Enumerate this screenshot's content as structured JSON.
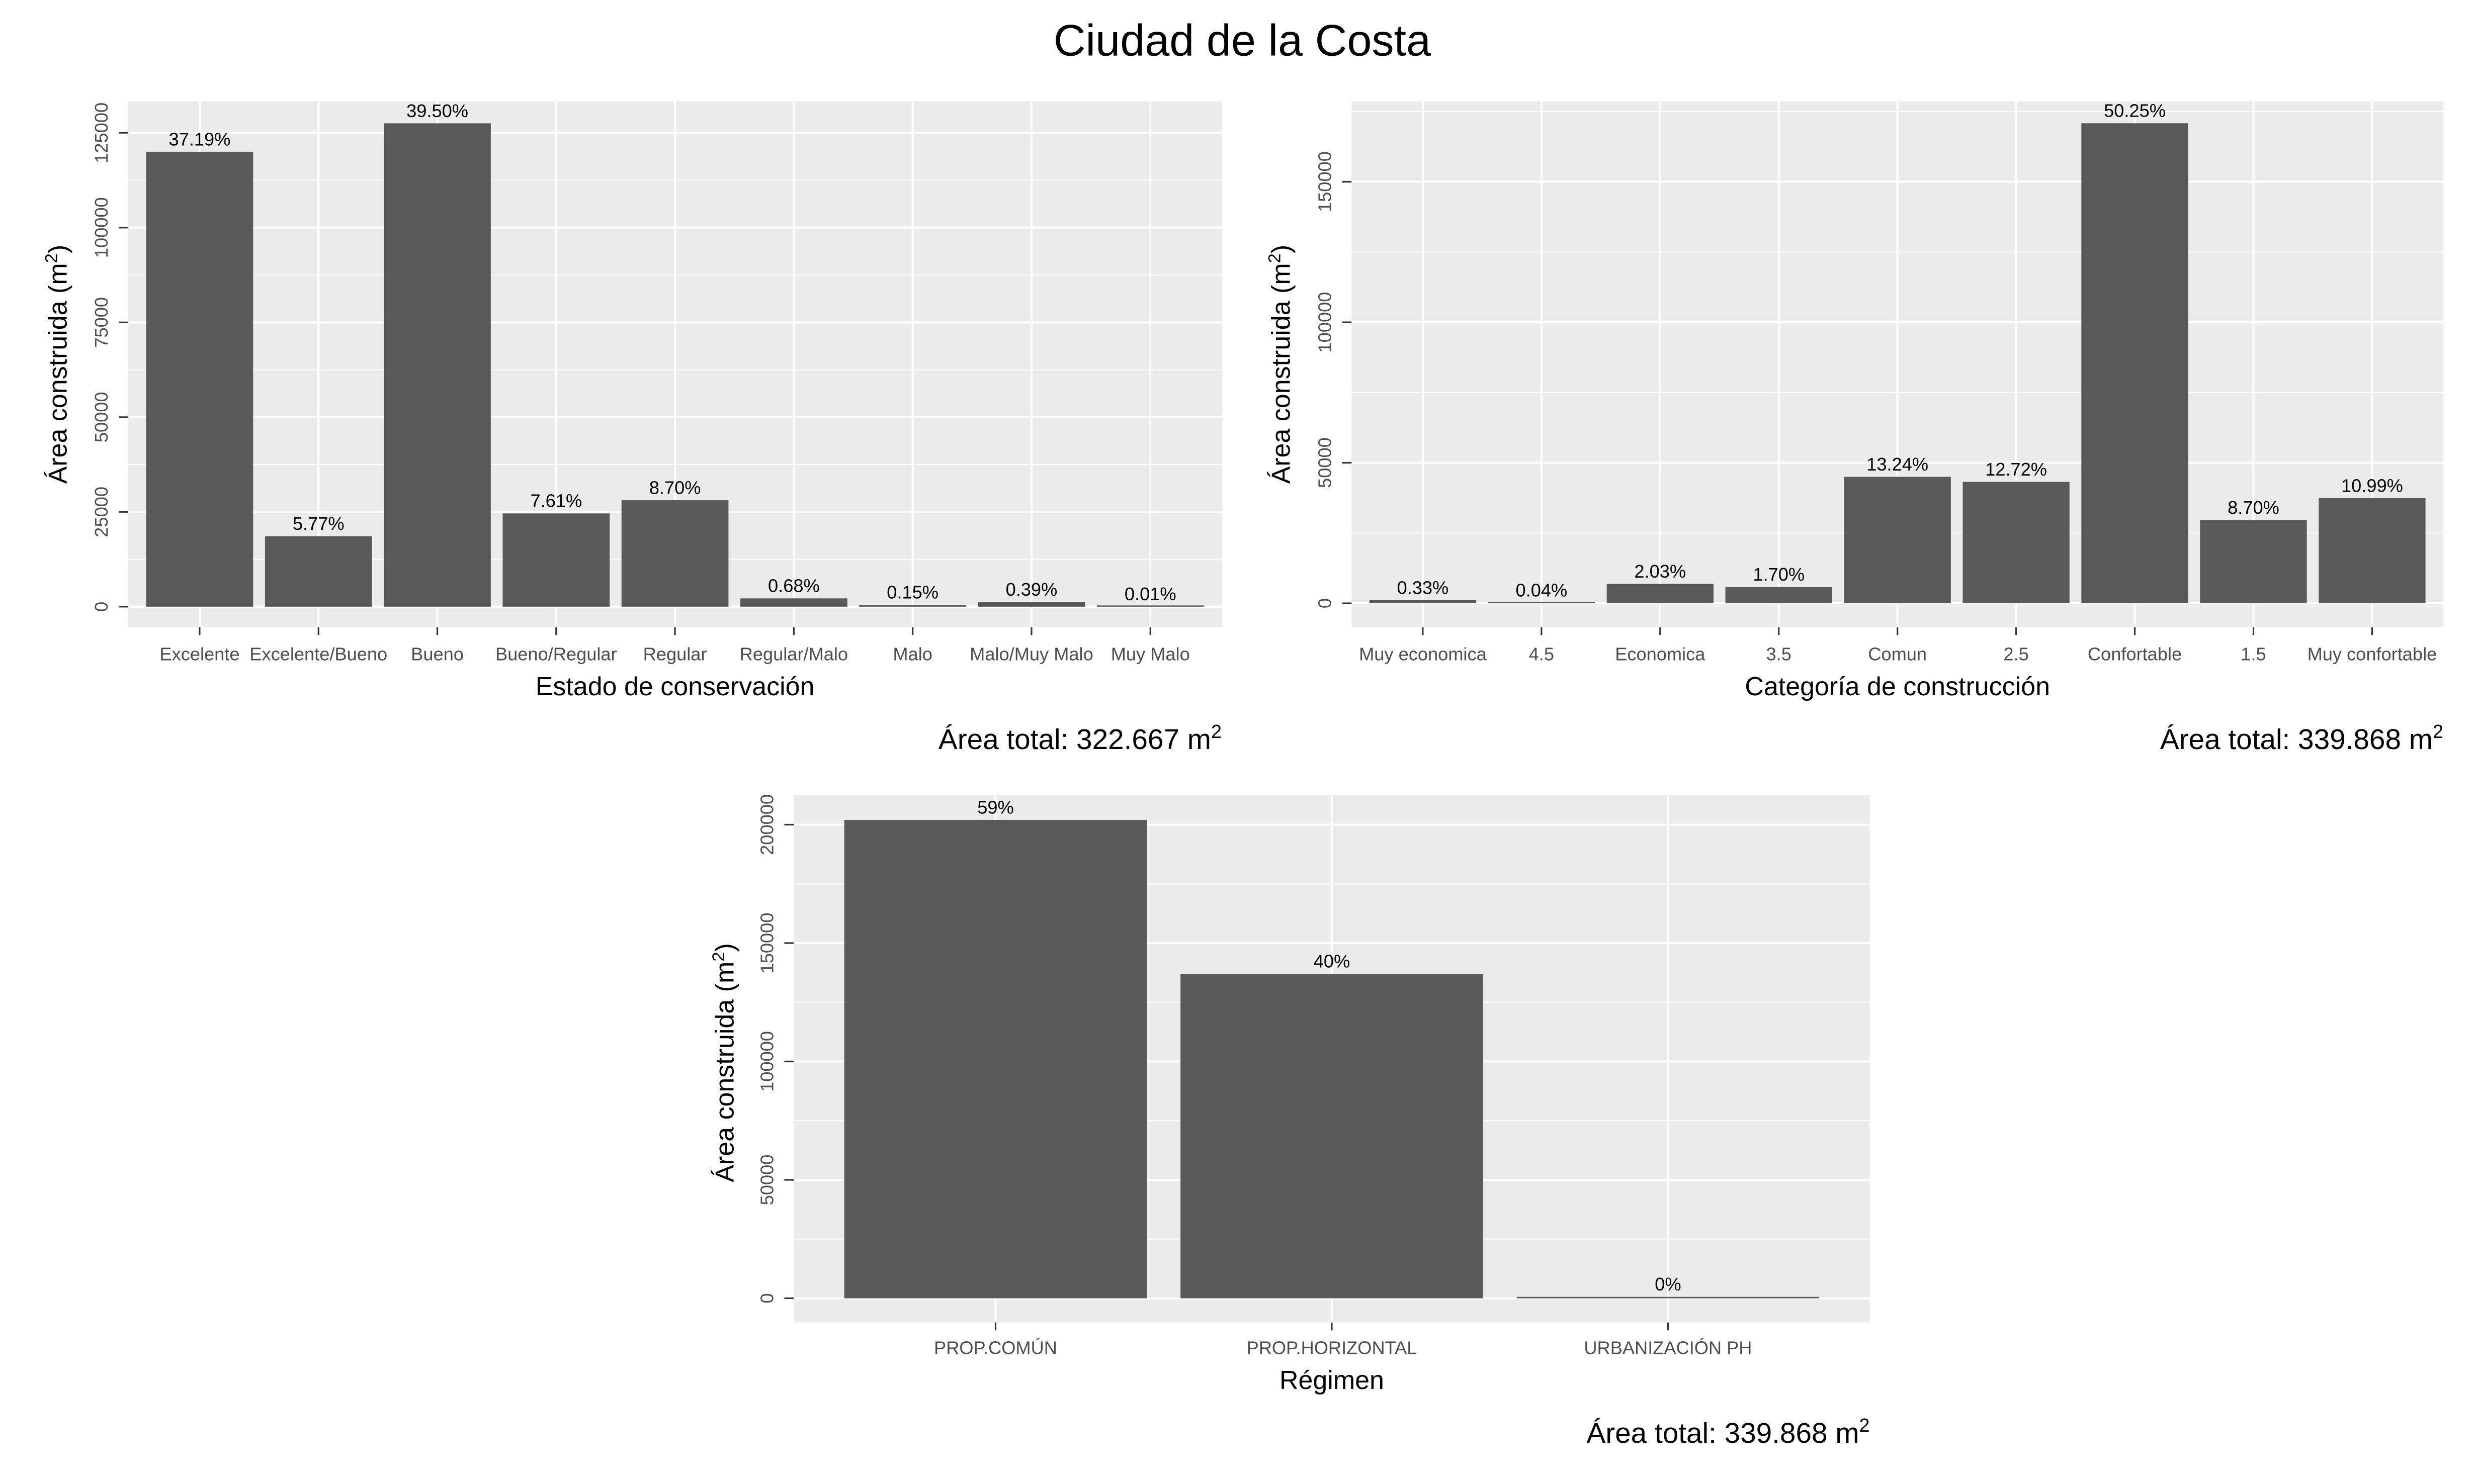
{
  "title": "Ciudad de la Costa",
  "style": {
    "panel_bg": "#EBEBEB",
    "grid_major": "#FFFFFF",
    "bar_fill": "#595959",
    "axis_text": "#4D4D4D",
    "text": "#000000"
  },
  "chart_data": [
    {
      "type": "bar",
      "xlabel": "Estado de conservación",
      "ylabel": "Área construida (m",
      "ylabel_sup": "2",
      "ylabel_tail": ")",
      "total_prefix": "Área total: 322.667 m",
      "total_sup": "2",
      "categories": [
        "Excelente",
        "Excelente/Bueno",
        "Bueno",
        "Bueno/Regular",
        "Regular",
        "Regular/Malo",
        "Malo",
        "Malo/Muy Malo",
        "Muy Malo"
      ],
      "values": [
        120000,
        18600,
        127500,
        24600,
        28100,
        2200,
        480,
        1260,
        30
      ],
      "labels": [
        "37.19%",
        "5.77%",
        "39.50%",
        "7.61%",
        "8.70%",
        "0.68%",
        "0.15%",
        "0.39%",
        "0.01%"
      ],
      "ylim": [
        -5400,
        133300
      ],
      "yticks": [
        0,
        25000,
        50000,
        75000,
        100000,
        125000
      ],
      "ytick_labels": [
        "0",
        "25000",
        "50000",
        "75000",
        "100000",
        "125000"
      ],
      "grid": true
    },
    {
      "type": "bar",
      "xlabel": "Categoría de construcción",
      "ylabel": "Área construida (m",
      "ylabel_sup": "2",
      "ylabel_tail": ")",
      "total_prefix": "Área total: 339.868 m",
      "total_sup": "2",
      "categories": [
        "Muy economica",
        "4.5",
        "Economica",
        "3.5",
        "Comun",
        "2.5",
        "Confortable",
        "1.5",
        "Muy confortable"
      ],
      "values": [
        1100,
        130,
        6900,
        5800,
        45000,
        43200,
        170800,
        29600,
        37400
      ],
      "labels": [
        "0.33%",
        "0.04%",
        "2.03%",
        "1.70%",
        "13.24%",
        "12.72%",
        "50.25%",
        "8.70%",
        "10.99%"
      ],
      "ylim": [
        -8500,
        178600
      ],
      "yticks": [
        0,
        50000,
        100000,
        150000
      ],
      "ytick_labels": [
        "0",
        "50000",
        "100000",
        "150000"
      ],
      "grid": true
    },
    {
      "type": "bar",
      "xlabel": "Régimen",
      "ylabel": "Área construida (m",
      "ylabel_sup": "2",
      "ylabel_tail": ")",
      "total_prefix": "Área total: 339.868 m",
      "total_sup": "2",
      "categories": [
        "PROP.COMÚN",
        "PROP.HORIZONTAL",
        "URBANIZACIÓN PH"
      ],
      "values": [
        202000,
        137000,
        600
      ],
      "labels": [
        "59%",
        "40%",
        "0%"
      ],
      "ylim": [
        -10200,
        212500
      ],
      "yticks": [
        0,
        50000,
        100000,
        150000,
        200000
      ],
      "ytick_labels": [
        "0",
        "50000",
        "100000",
        "150000",
        "200000"
      ],
      "grid": true
    }
  ]
}
